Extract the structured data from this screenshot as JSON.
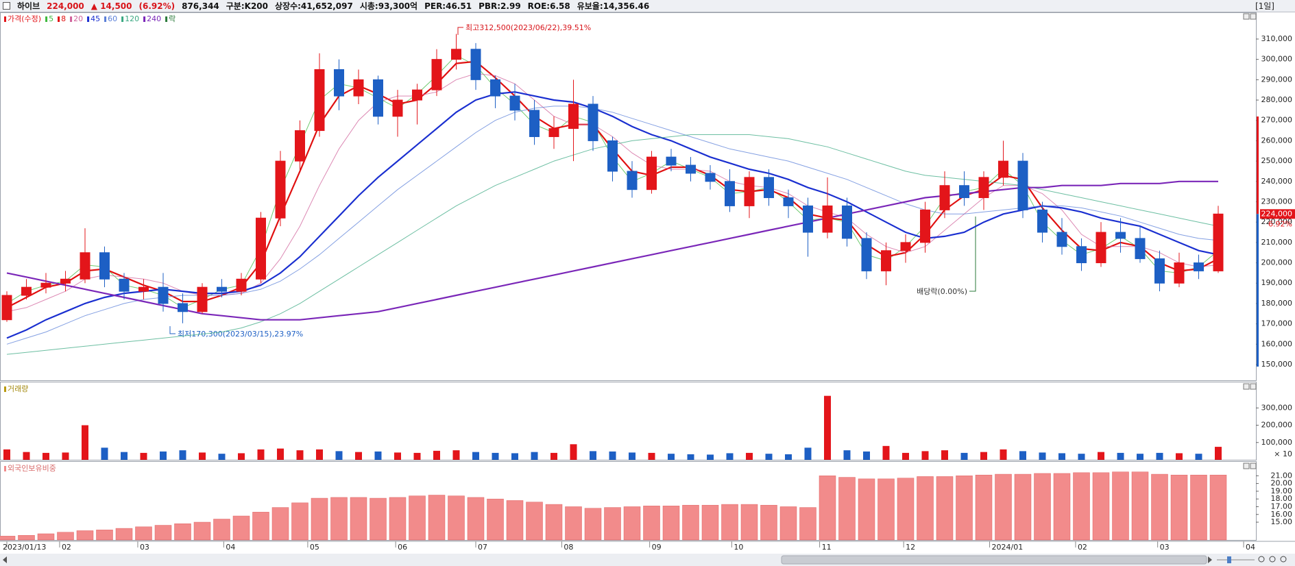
{
  "header": {
    "name": "하이브",
    "price": "224,000",
    "change": "▲ 14,500",
    "change_pct": "(6.92%)",
    "volume": "876,344",
    "sector": "구분:K200",
    "shares": "상장수:41,652,097",
    "market_cap": "시총:93,300억",
    "per": "PER:46.51",
    "pbr": "PBR:2.99",
    "roe": "ROE:6.58",
    "reserve_ratio": "유보율:14,356.46",
    "period": "[1일]"
  },
  "chart_data": [
    {
      "type": "candlestick",
      "title": "가격(수정)",
      "up_color": "#e3151a",
      "down_color": "#1d5fc4",
      "current_change_label": "6.92%",
      "marker_legend": "락",
      "annotations": {
        "high": "최고312,500(2023/06/22),39.51%",
        "low": "최저170,300(2023/03/15),23.97%",
        "ex_dividend": "배당락(0.00%)"
      },
      "xticks": [
        {
          "value": 0,
          "label": "2023/01/13"
        },
        {
          "value": 2.7,
          "label": "02"
        },
        {
          "value": 6.7,
          "label": "03"
        },
        {
          "value": 11.1,
          "label": "04"
        },
        {
          "value": 15.4,
          "label": "05"
        },
        {
          "value": 19.9,
          "label": "06"
        },
        {
          "value": 24.0,
          "label": "07"
        },
        {
          "value": 28.4,
          "label": "08"
        },
        {
          "value": 32.9,
          "label": "09"
        },
        {
          "value": 37.1,
          "label": "10"
        },
        {
          "value": 41.6,
          "label": "11"
        },
        {
          "value": 45.9,
          "label": "12"
        },
        {
          "value": 50.3,
          "label": "2024/01"
        },
        {
          "value": 54.7,
          "label": "02"
        },
        {
          "value": 58.9,
          "label": "03"
        },
        {
          "value": 63.3,
          "label": "04"
        }
      ],
      "open": [
        172000,
        184000,
        188000,
        190000,
        192000,
        205000,
        192000,
        186000,
        188000,
        180000,
        176000,
        188000,
        186000,
        192000,
        222000,
        250000,
        265000,
        295000,
        282000,
        290000,
        272000,
        280000,
        285000,
        300000,
        305000,
        290000,
        282000,
        275000,
        262000,
        266000,
        278000,
        260000,
        245000,
        236000,
        252000,
        248000,
        244000,
        240000,
        228000,
        242000,
        232000,
        228000,
        215000,
        228000,
        212000,
        196000,
        206000,
        210000,
        226000,
        238000,
        232000,
        242000,
        250000,
        226000,
        215000,
        208000,
        200000,
        215000,
        212000,
        202000,
        190000,
        200000,
        196000
      ],
      "high": [
        186000,
        192000,
        195000,
        196000,
        217000,
        208000,
        195000,
        192000,
        195000,
        185000,
        190000,
        192000,
        195000,
        225000,
        255000,
        270000,
        303000,
        300000,
        295000,
        292000,
        285000,
        288000,
        305000,
        312500,
        308000,
        292000,
        288000,
        280000,
        272000,
        290000,
        282000,
        262000,
        250000,
        255000,
        256000,
        252000,
        248000,
        246000,
        245000,
        246000,
        236000,
        232000,
        242000,
        232000,
        215000,
        210000,
        214000,
        230000,
        245000,
        245000,
        245000,
        260000,
        254000,
        230000,
        222000,
        212000,
        220000,
        222000,
        218000,
        206000,
        205000,
        204000,
        228000
      ],
      "low": [
        171000,
        182000,
        185000,
        186000,
        190000,
        188000,
        182000,
        182000,
        176000,
        170300,
        175000,
        183000,
        184000,
        190000,
        218000,
        245000,
        262000,
        275000,
        278000,
        268000,
        262000,
        268000,
        282000,
        295000,
        285000,
        276000,
        270000,
        258000,
        256000,
        250000,
        255000,
        240000,
        232000,
        234000,
        245000,
        240000,
        236000,
        225000,
        222000,
        228000,
        222000,
        203000,
        212000,
        208000,
        192000,
        189000,
        200000,
        205000,
        222000,
        228000,
        226000,
        238000,
        222000,
        210000,
        204000,
        196000,
        198000,
        205000,
        200000,
        186000,
        188000,
        192000,
        195000
      ],
      "close": [
        184000,
        188000,
        190000,
        192000,
        205000,
        192000,
        186000,
        188000,
        180000,
        176000,
        188000,
        186000,
        192000,
        222000,
        250000,
        265000,
        295000,
        282000,
        290000,
        272000,
        280000,
        285000,
        300000,
        305000,
        290000,
        282000,
        275000,
        262000,
        266000,
        278000,
        260000,
        245000,
        236000,
        252000,
        248000,
        244000,
        240000,
        228000,
        242000,
        232000,
        228000,
        215000,
        228000,
        212000,
        196000,
        206000,
        210000,
        226000,
        238000,
        232000,
        242000,
        250000,
        226000,
        215000,
        208000,
        200000,
        215000,
        212000,
        202000,
        190000,
        200000,
        196000,
        224000
      ],
      "series": [
        {
          "name": "5",
          "color": "#3cb83c",
          "values": [
            180000,
            186000,
            189000,
            191000,
            199000,
            198000,
            189000,
            187000,
            184000,
            178000,
            182000,
            187000,
            189000,
            207000,
            236000,
            258000,
            280000,
            288000,
            286000,
            281000,
            276000,
            283000,
            292000,
            302000,
            297000,
            286000,
            278000,
            268000,
            264000,
            272000,
            269000,
            252000,
            240000,
            244000,
            250000,
            246000,
            242000,
            234000,
            235000,
            237000,
            230000,
            221000,
            222000,
            220000,
            204000,
            201000,
            208000,
            218000,
            232000,
            235000,
            237000,
            246000,
            238000,
            220000,
            211000,
            204000,
            207000,
            213000,
            207000,
            196000,
            195000,
            198000,
            206000
          ]
        },
        {
          "name": "8",
          "color": "#e01010",
          "values": [
            178000,
            183000,
            188000,
            190000,
            196000,
            197000,
            193000,
            189000,
            186000,
            181000,
            181000,
            184000,
            188000,
            200000,
            223000,
            245000,
            268000,
            282000,
            287000,
            283000,
            278000,
            280000,
            288000,
            298000,
            299000,
            291000,
            282000,
            272000,
            266000,
            268000,
            268000,
            256000,
            245000,
            243000,
            247000,
            247000,
            243000,
            236000,
            235000,
            236000,
            232000,
            224000,
            222000,
            221000,
            209000,
            203000,
            205000,
            214000,
            226000,
            233000,
            236000,
            243000,
            241000,
            227000,
            216000,
            207000,
            206000,
            210000,
            208000,
            200000,
            196000,
            197000,
            202000
          ]
        },
        {
          "name": "20",
          "color": "#d0609a",
          "values": [
            176000,
            178000,
            182000,
            186000,
            192000,
            194000,
            193000,
            192000,
            190000,
            186000,
            184000,
            184000,
            185000,
            190000,
            202000,
            218000,
            238000,
            256000,
            270000,
            279000,
            282000,
            282000,
            284000,
            290000,
            293000,
            292000,
            288000,
            280000,
            272000,
            268000,
            268000,
            262000,
            254000,
            248000,
            246000,
            246000,
            245000,
            240000,
            238000,
            237000,
            234000,
            228000,
            225000,
            222000,
            214000,
            208000,
            205000,
            208000,
            216000,
            224000,
            232000,
            238000,
            238000,
            234000,
            226000,
            214000,
            208000,
            208000,
            208000,
            205000,
            200000,
            198000,
            199000
          ]
        },
        {
          "name": "45",
          "color": "#1a2fd0",
          "values": [
            163000,
            167000,
            172000,
            176000,
            180000,
            183000,
            185000,
            186000,
            187000,
            186000,
            185000,
            185000,
            186000,
            189000,
            195000,
            203000,
            213000,
            223000,
            233000,
            242000,
            250000,
            258000,
            266000,
            274000,
            280000,
            283000,
            284000,
            282000,
            280000,
            279000,
            276000,
            272000,
            267000,
            263000,
            260000,
            256000,
            252000,
            249000,
            246000,
            244000,
            241000,
            237000,
            234000,
            230000,
            225000,
            220000,
            215000,
            212000,
            213000,
            215000,
            220000,
            224000,
            226000,
            228000,
            227000,
            225000,
            222000,
            220000,
            218000,
            214000,
            210000,
            206000,
            204000
          ]
        },
        {
          "name": "60",
          "color": "#5a7fd8",
          "values": [
            160000,
            163000,
            166000,
            170000,
            174000,
            177000,
            180000,
            182000,
            183000,
            184000,
            184000,
            184000,
            185000,
            187000,
            191000,
            197000,
            204000,
            212000,
            220000,
            228000,
            236000,
            243000,
            250000,
            257000,
            264000,
            270000,
            274000,
            276000,
            277000,
            277000,
            276000,
            274000,
            271000,
            268000,
            265000,
            262000,
            259000,
            256000,
            254000,
            252000,
            250000,
            247000,
            244000,
            241000,
            237000,
            233000,
            229000,
            226000,
            224000,
            224000,
            225000,
            226000,
            227000,
            228000,
            228000,
            227000,
            225000,
            223000,
            220000,
            217000,
            214000,
            212000,
            211000
          ]
        },
        {
          "name": "120",
          "color": "#3aa882",
          "values": [
            155000,
            156000,
            157000,
            158000,
            159000,
            160000,
            161000,
            162000,
            163000,
            164000,
            165000,
            166000,
            168000,
            171000,
            175000,
            180000,
            186000,
            192000,
            198000,
            204000,
            210000,
            216000,
            222000,
            228000,
            233000,
            238000,
            242000,
            246000,
            250000,
            253000,
            256000,
            258000,
            260000,
            261000,
            262000,
            263000,
            263000,
            263000,
            263000,
            262000,
            261000,
            259000,
            257000,
            254000,
            251000,
            248000,
            245000,
            243000,
            242000,
            241000,
            240000,
            239000,
            238000,
            236000,
            234000,
            232000,
            230000,
            228000,
            226000,
            224000,
            222000,
            220000,
            218000
          ]
        },
        {
          "name": "240",
          "color": "#7a26b8",
          "values": [
            195000,
            193000,
            191000,
            189000,
            187000,
            185000,
            183000,
            181000,
            179000,
            177000,
            175000,
            174000,
            173000,
            172000,
            172000,
            172000,
            173000,
            174000,
            175000,
            176000,
            178000,
            180000,
            182000,
            184000,
            186000,
            188000,
            190000,
            192000,
            194000,
            196000,
            198000,
            200000,
            202000,
            204000,
            206000,
            208000,
            210000,
            212000,
            214000,
            216000,
            218000,
            220000,
            222000,
            224000,
            226000,
            228000,
            230000,
            232000,
            233000,
            234000,
            235000,
            236000,
            237000,
            237000,
            238000,
            238000,
            238000,
            239000,
            239000,
            239000,
            240000,
            240000,
            240000
          ]
        }
      ],
      "ylim": [
        142250,
        322450
      ],
      "yticks": [
        {
          "value": 150000,
          "label": "150,000"
        },
        {
          "value": 160000,
          "label": "160,000"
        },
        {
          "value": 170000,
          "label": "170,000"
        },
        {
          "value": 180000,
          "label": "180,000"
        },
        {
          "value": 190000,
          "label": "190,000"
        },
        {
          "value": 200000,
          "label": "200,000"
        },
        {
          "value": 210000,
          "label": "210,000"
        },
        {
          "value": 220000,
          "label": "220,000"
        },
        {
          "value": 230000,
          "label": "230,000"
        },
        {
          "value": 240000,
          "label": "240,000"
        },
        {
          "value": 250000,
          "label": "250,000"
        },
        {
          "value": 260000,
          "label": "260,000"
        },
        {
          "value": 270000,
          "label": "270,000"
        },
        {
          "value": 280000,
          "label": "280,000"
        },
        {
          "value": 290000,
          "label": "290,000"
        },
        {
          "value": 300000,
          "label": "300,000"
        },
        {
          "value": 310000,
          "label": "310,000"
        }
      ]
    },
    {
      "type": "bar",
      "title": "거래량",
      "unit_note": "× 10",
      "values": [
        60000,
        45000,
        40000,
        42000,
        200000,
        70000,
        45000,
        40000,
        48000,
        55000,
        42000,
        35000,
        38000,
        60000,
        65000,
        55000,
        60000,
        50000,
        45000,
        48000,
        42000,
        40000,
        52000,
        55000,
        45000,
        40000,
        38000,
        45000,
        40000,
        90000,
        50000,
        48000,
        42000,
        40000,
        35000,
        32000,
        30000,
        38000,
        40000,
        35000,
        32000,
        70000,
        370000,
        55000,
        48000,
        80000,
        40000,
        50000,
        55000,
        40000,
        45000,
        60000,
        50000,
        42000,
        38000,
        35000,
        45000,
        40000,
        35000,
        40000,
        38000,
        35000,
        75000
      ],
      "ylim": [
        0,
        448000
      ],
      "yticks": [
        {
          "value": 100000,
          "label": "100,000"
        },
        {
          "value": 200000,
          "label": "200,000"
        },
        {
          "value": 300000,
          "label": "300,000"
        }
      ]
    },
    {
      "type": "bar",
      "title": "외국인보유비중",
      "color": "#f28b8b",
      "values": [
        13.2,
        13.3,
        13.5,
        13.7,
        13.9,
        14.0,
        14.2,
        14.4,
        14.6,
        14.8,
        15.0,
        15.4,
        15.8,
        16.3,
        16.9,
        17.5,
        18.1,
        18.2,
        18.2,
        18.1,
        18.2,
        18.4,
        18.5,
        18.4,
        18.2,
        18.0,
        17.8,
        17.6,
        17.3,
        17.0,
        16.8,
        16.9,
        17.0,
        17.1,
        17.1,
        17.2,
        17.2,
        17.3,
        17.3,
        17.2,
        17.0,
        16.9,
        21.0,
        20.8,
        20.6,
        20.6,
        20.7,
        20.9,
        20.9,
        21.0,
        21.1,
        21.2,
        21.2,
        21.3,
        21.3,
        21.4,
        21.4,
        21.5,
        21.5,
        21.2,
        21.1,
        21.1,
        21.1
      ],
      "ylim": [
        12.7,
        22.8
      ],
      "yticks": [
        {
          "value": 15,
          "label": "15.00"
        },
        {
          "value": 16,
          "label": "16.00"
        },
        {
          "value": 17,
          "label": "17.00"
        },
        {
          "value": 18,
          "label": "18.00"
        },
        {
          "value": 19,
          "label": "19.00"
        },
        {
          "value": 20,
          "label": "20.00"
        },
        {
          "value": 21,
          "label": "21.00"
        }
      ]
    }
  ]
}
